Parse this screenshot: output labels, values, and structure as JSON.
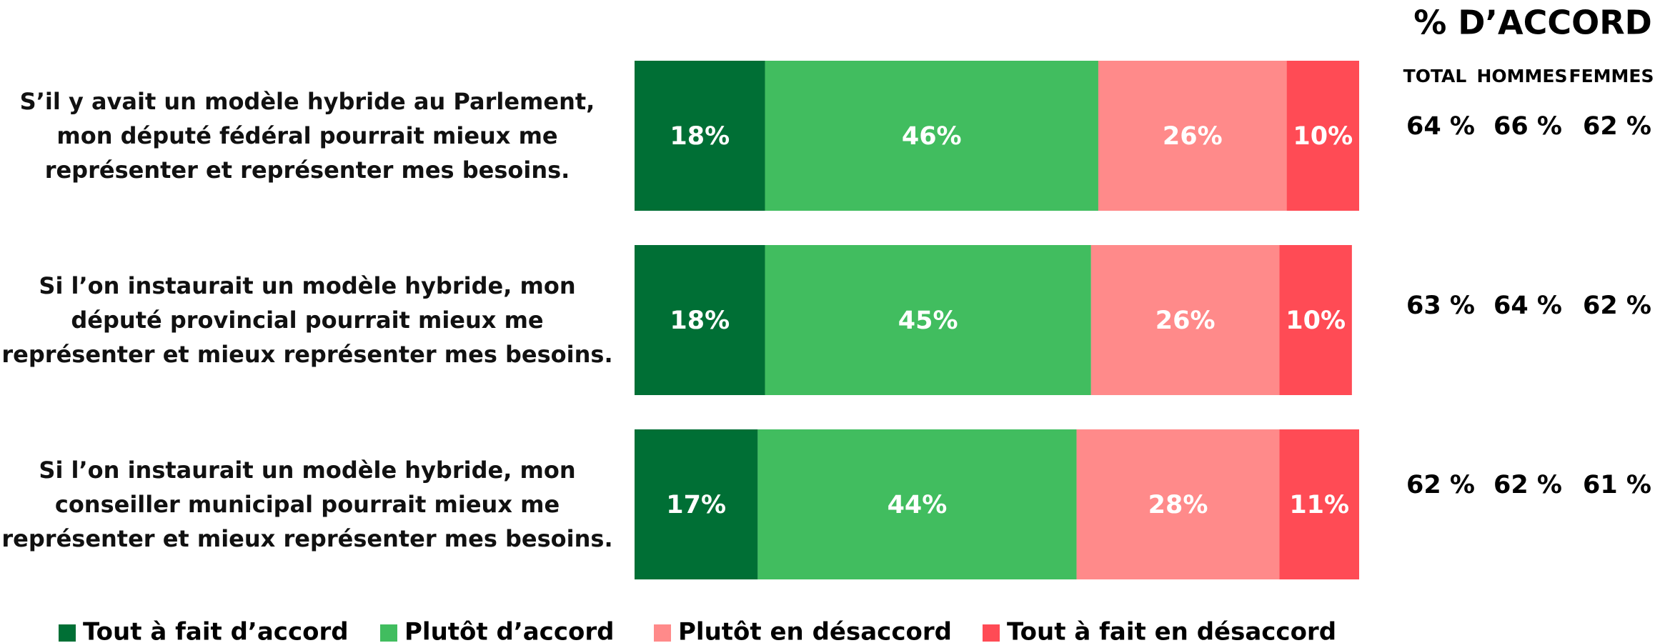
{
  "chart_data": {
    "type": "stacked_barh",
    "categories": [
      "S’il y avait un modèle hybride au Parlement,\nmon député fédéral pourrait mieux me\nreprésenter et représenter mes besoins.",
      "Si l’on instaurait un modèle hybride, mon\ndéputé provincial pourrait mieux me\nreprésenter et mieux représenter mes besoins.",
      "Si l’on instaurait un modèle hybride, mon\nconseiller municipal pourrait mieux me\nreprésenter et mieux représenter mes besoins."
    ],
    "series": [
      {
        "name": "Tout à fait d’accord",
        "color": "#006f35",
        "values": [
          18,
          18,
          17
        ],
        "value_labels": [
          "18%",
          "18%",
          "17%"
        ]
      },
      {
        "name": "Plutôt d’accord",
        "color": "#41bd5f",
        "values": [
          46,
          45,
          44
        ],
        "value_labels": [
          "46%",
          "45%",
          "44%"
        ]
      },
      {
        "name": "Plutôt en désaccord",
        "color": "#ff8a8a",
        "values": [
          26,
          26,
          28
        ],
        "value_labels": [
          "26%",
          "26%",
          "28%"
        ]
      },
      {
        "name": "Tout à fait en désaccord",
        "color": "#ff4b55",
        "values": [
          10,
          10,
          11
        ],
        "value_labels": [
          "10%",
          "10%",
          "11%"
        ]
      }
    ],
    "xlim": [
      0,
      100
    ],
    "agree_table": {
      "title": "% D’ACCORD",
      "columns": [
        "TOTAL",
        "HOMMES",
        "FEMMES"
      ],
      "rows": [
        [
          "64 %",
          "66 %",
          "62 %"
        ],
        [
          "63 %",
          "64 %",
          "62 %"
        ],
        [
          "62 %",
          "62 %",
          "61 %"
        ]
      ]
    }
  }
}
